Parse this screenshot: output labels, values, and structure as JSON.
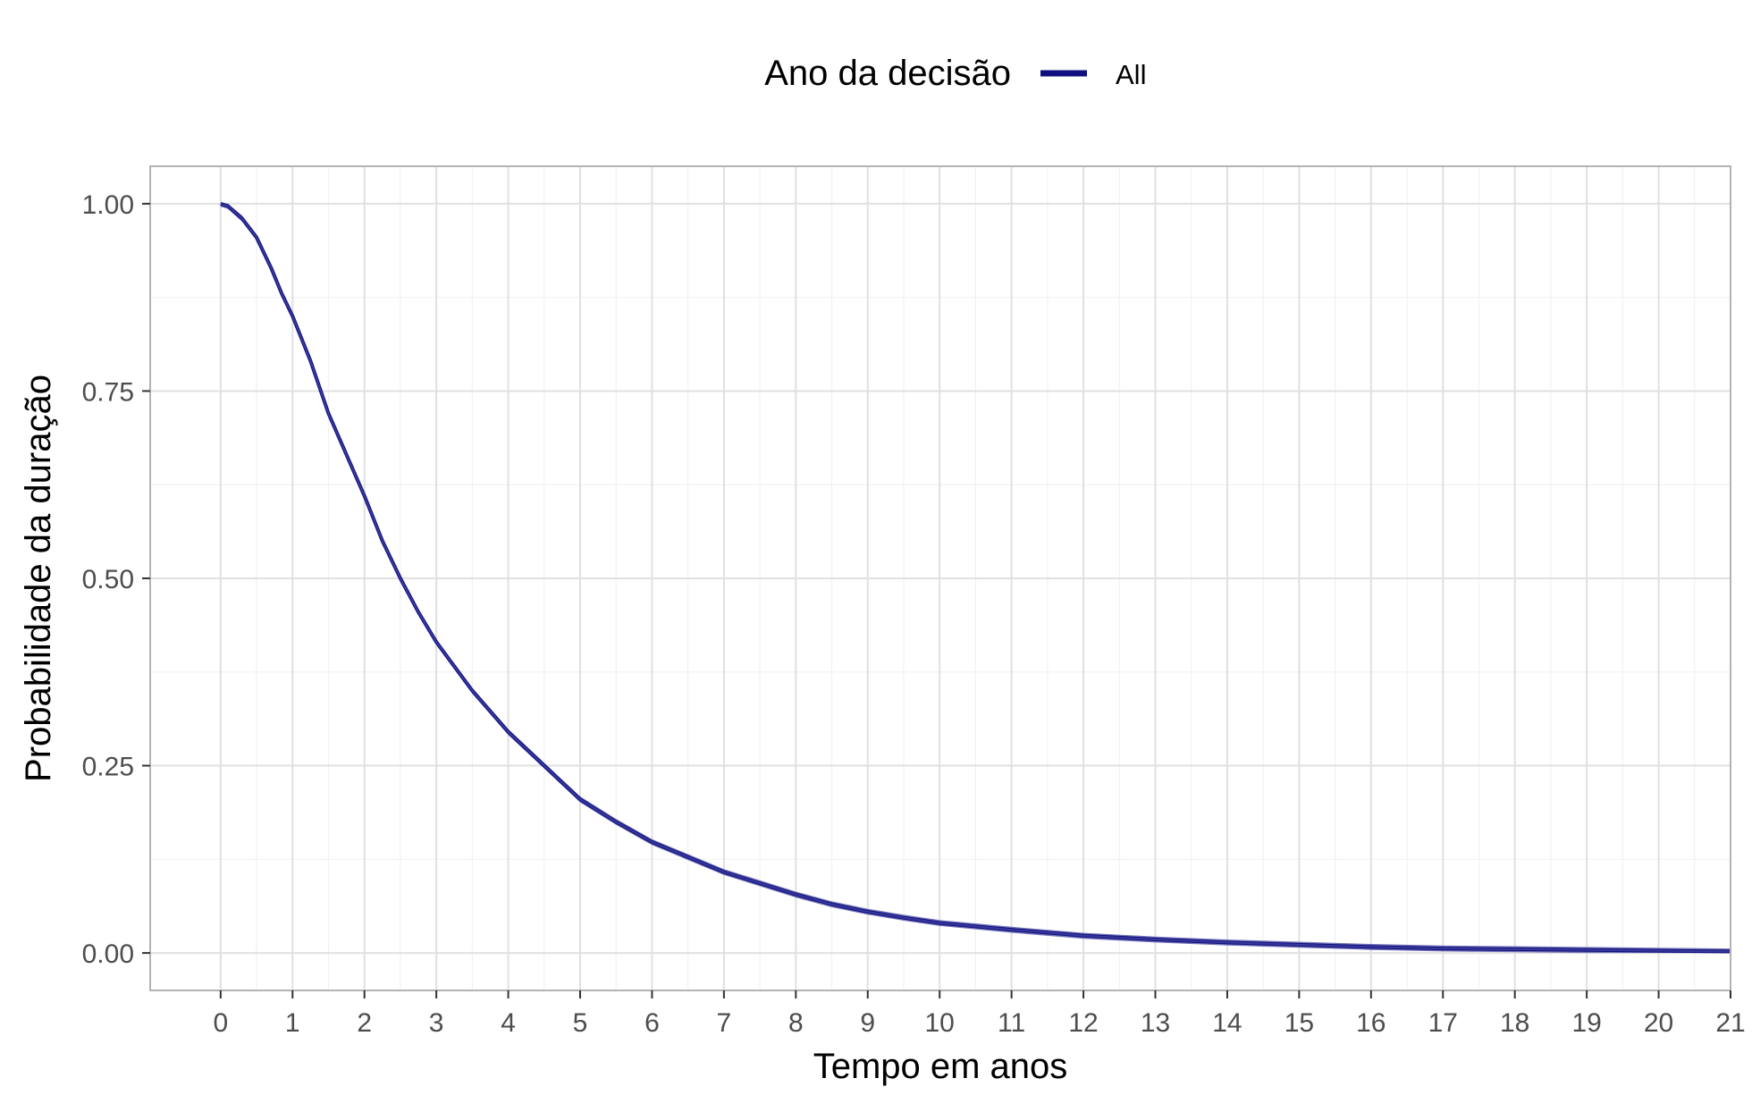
{
  "chart_data": {
    "type": "line",
    "title": "",
    "xlabel": "Tempo em anos",
    "ylabel": "Probabilidade da duração",
    "xlim": [
      -0.98,
      21
    ],
    "ylim": [
      -0.05,
      1.05
    ],
    "x_ticks": [
      0,
      1,
      2,
      3,
      4,
      5,
      6,
      7,
      8,
      9,
      10,
      11,
      12,
      13,
      14,
      15,
      16,
      17,
      18,
      19,
      20,
      21
    ],
    "y_ticks": [
      0,
      0.25,
      0.5,
      0.75,
      1
    ],
    "y_tick_labels": [
      "0.00",
      "0.25",
      "0.50",
      "0.75",
      "1.00"
    ],
    "grid": true,
    "legend": {
      "title": "Ano da decisão",
      "position": "top",
      "entries": [
        "All"
      ]
    },
    "series": [
      {
        "name": "All",
        "color": "#0f0f80",
        "ribbon_color": "#5d5dae",
        "x": [
          0,
          0.1,
          0.3,
          0.5,
          0.7,
          0.85,
          1,
          1.25,
          1.5,
          1.75,
          2,
          2.25,
          2.5,
          2.75,
          3,
          3.5,
          4,
          4.5,
          5,
          5.5,
          6,
          6.5,
          7,
          7.5,
          8,
          8.5,
          9,
          9.5,
          10,
          11,
          12,
          13,
          14,
          15,
          16,
          17,
          18,
          19,
          20,
          21
        ],
        "y": [
          1.0,
          0.997,
          0.98,
          0.955,
          0.915,
          0.88,
          0.85,
          0.79,
          0.72,
          0.665,
          0.61,
          0.55,
          0.5,
          0.455,
          0.415,
          0.35,
          0.295,
          0.25,
          0.205,
          0.175,
          0.148,
          0.128,
          0.108,
          0.093,
          0.078,
          0.065,
          0.055,
          0.047,
          0.04,
          0.031,
          0.023,
          0.018,
          0.014,
          0.011,
          0.008,
          0.006,
          0.005,
          0.004,
          0.003,
          0.002
        ]
      }
    ]
  }
}
